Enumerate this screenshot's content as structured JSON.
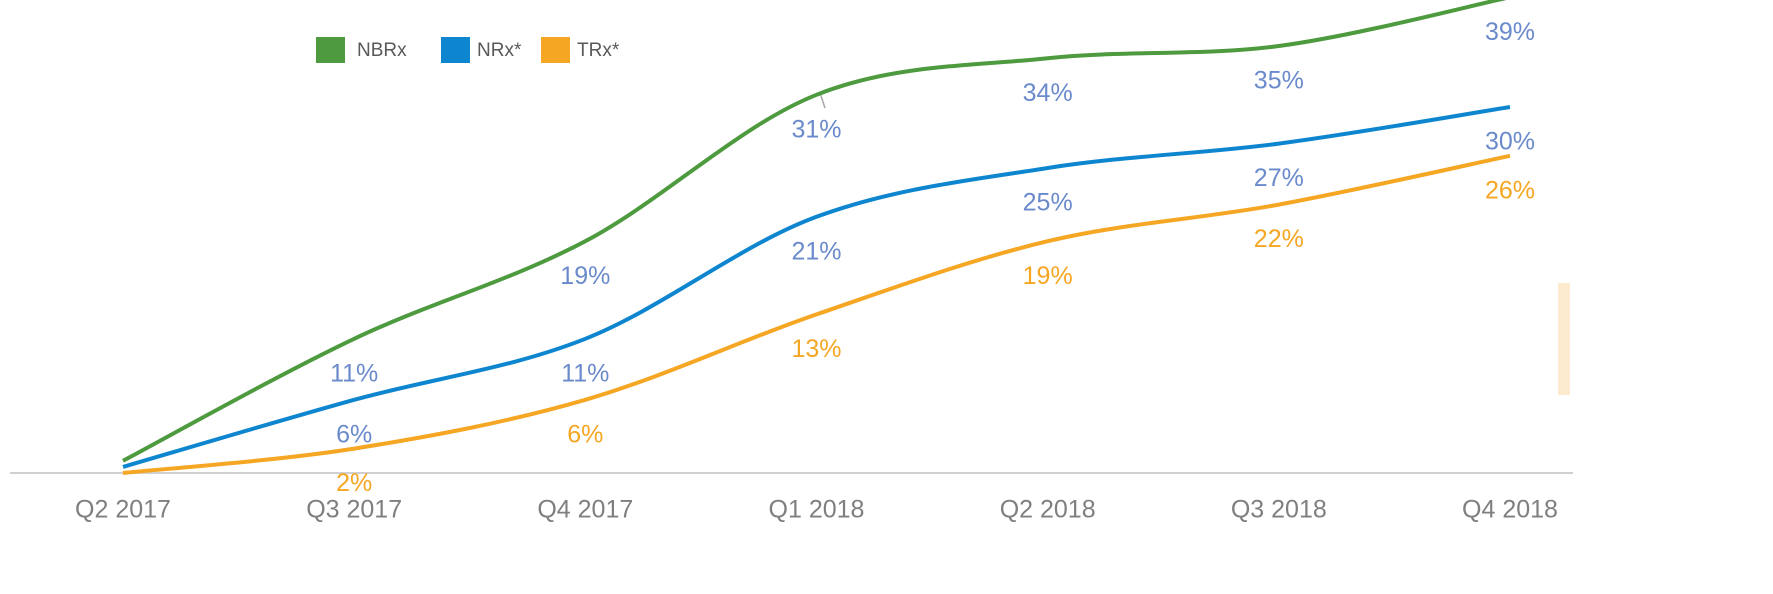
{
  "chart_data": {
    "type": "line",
    "categories": [
      "Q2 2017",
      "Q3 2017",
      "Q4 2017",
      "Q1 2018",
      "Q2 2018",
      "Q3 2018",
      "Q4 2018"
    ],
    "series": [
      {
        "name": "NBRx",
        "color": "#4e9a3f",
        "label_color": "#6a8acb",
        "values": [
          1,
          11,
          19,
          31,
          34,
          35,
          39
        ],
        "value_labels": [
          null,
          "11%",
          "19%",
          "31%",
          "34%",
          "35%",
          "39%"
        ]
      },
      {
        "name": "NRx*",
        "color": "#0e86cf",
        "label_color": "#6a8acb",
        "values": [
          0.5,
          6,
          11,
          21,
          25,
          27,
          30
        ],
        "value_labels": [
          null,
          "6%",
          "11%",
          "21%",
          "25%",
          "27%",
          "30%"
        ]
      },
      {
        "name": "TRx*",
        "color": "#f5a623",
        "label_color": "#f5a623",
        "values": [
          0,
          2,
          6,
          13,
          19,
          22,
          26
        ],
        "value_labels": [
          null,
          "2%",
          "6%",
          "13%",
          "19%",
          "22%",
          "26%"
        ]
      }
    ],
    "ylim": [
      0,
      40
    ],
    "legend": "top-left",
    "smooth": true
  }
}
